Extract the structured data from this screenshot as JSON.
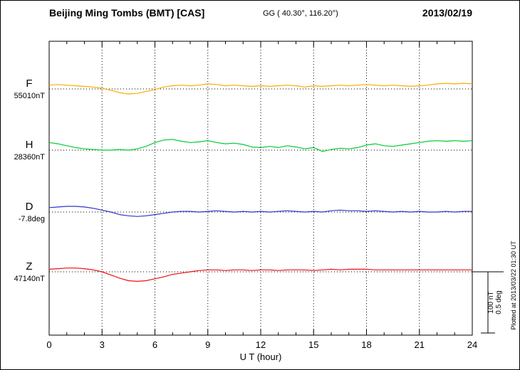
{
  "header": {
    "title": "Beijing Ming Tombs (BMT)  [CAS]",
    "coords": "GG ( 40.30°, 116.20°)",
    "date": "2013/02/19"
  },
  "footer": {
    "xlabel": "U T (hour)"
  },
  "side": {
    "plotted_note": "Plotted at 2013/03/22 01:30 UT",
    "scale_labels": [
      "100 nT",
      "0.5 deg"
    ]
  },
  "chart_data": {
    "type": "line",
    "title": "Beijing Ming Tombs (BMT) [CAS] magnetogram 2013/02/19",
    "xlabel": "U T (hour)",
    "x_range": [
      0,
      24
    ],
    "x_ticks": [
      0,
      3,
      6,
      9,
      12,
      15,
      18,
      21,
      24
    ],
    "step_hours": 0.5,
    "grid": "dotted vertical lines every 3 h; dotted horizontal baseline per channel",
    "scale": {
      "nT_per_bar": 100,
      "deg_per_bar": 0.5
    },
    "series": [
      {
        "name": "F",
        "color": "#ffaa00",
        "units": "nT",
        "baseline": 55010,
        "baseline_label": "55010nT",
        "offsets": [
          6,
          7,
          6,
          5,
          4,
          3,
          1,
          -2,
          -6,
          -8,
          -7,
          -4,
          -1,
          3,
          5,
          6,
          5,
          6,
          8,
          7,
          5,
          6,
          5,
          4,
          5,
          4,
          5,
          6,
          5,
          3,
          5,
          4,
          5,
          6,
          5,
          6,
          7,
          6,
          5,
          6,
          5,
          4,
          5,
          6,
          8,
          9,
          8,
          9,
          8
        ]
      },
      {
        "name": "H",
        "color": "#00cc33",
        "units": "nT",
        "baseline": 28360,
        "baseline_label": "28360nT",
        "offsets": [
          12,
          10,
          7,
          4,
          2,
          1,
          0,
          0,
          1,
          0,
          2,
          6,
          12,
          16,
          17,
          14,
          12,
          13,
          15,
          12,
          10,
          11,
          9,
          5,
          4,
          6,
          4,
          7,
          5,
          2,
          4,
          -2,
          1,
          3,
          2,
          4,
          8,
          10,
          7,
          6,
          8,
          10,
          12,
          14,
          15,
          14,
          15,
          14,
          15
        ]
      },
      {
        "name": "D",
        "color": "#3333cc",
        "units": "deg",
        "baseline": -7.8,
        "baseline_label": "-7.8deg",
        "offsets": [
          0.035,
          0.04,
          0.045,
          0.045,
          0.04,
          0.03,
          0.015,
          0,
          -0.02,
          -0.03,
          -0.035,
          -0.03,
          -0.02,
          -0.01,
          0,
          0.005,
          0.005,
          0,
          0.005,
          0.01,
          0.005,
          0,
          0.005,
          0,
          0.005,
          0,
          0.005,
          0.01,
          0.005,
          0,
          0.005,
          0,
          0.01,
          0.015,
          0.01,
          0.01,
          0.005,
          0.01,
          0.005,
          0,
          0.005,
          0,
          0.005,
          0,
          0,
          0.005,
          0,
          0.005,
          0.005
        ]
      },
      {
        "name": "Z",
        "color": "#ee1111",
        "units": "nT",
        "baseline": 47140,
        "baseline_label": "47140nT",
        "offsets": [
          4,
          5,
          6,
          6,
          5,
          3,
          0,
          -5,
          -10,
          -14,
          -15,
          -14,
          -11,
          -8,
          -4,
          -2,
          0,
          2,
          3,
          3,
          2,
          3,
          3,
          2,
          3,
          3,
          2,
          3,
          3,
          3,
          2,
          3,
          4,
          3,
          4,
          4,
          4,
          3,
          3,
          3,
          3,
          3,
          3,
          3,
          3,
          3,
          3,
          3,
          3
        ]
      }
    ]
  }
}
